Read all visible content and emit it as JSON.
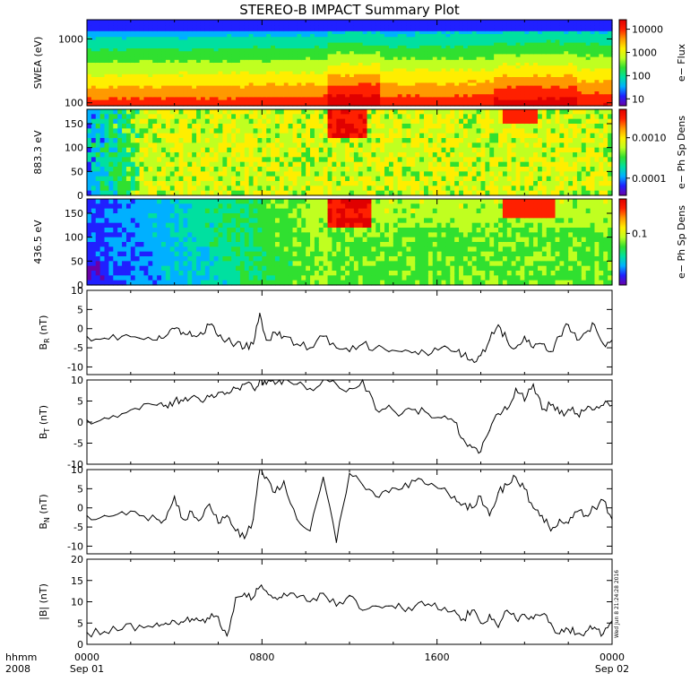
{
  "title": "STEREO-B IMPACT Summary Plot",
  "stamp": "Wed Jun  8 21:24:28 2016",
  "time_axis": {
    "row1_label": "hhmm",
    "row2_label": "2008",
    "ticks": [
      {
        "hour": 0,
        "label": "0000",
        "sub": "Sep 01"
      },
      {
        "hour": 8,
        "label": "0800",
        "sub": ""
      },
      {
        "hour": 16,
        "label": "1600",
        "sub": ""
      },
      {
        "hour": 24,
        "label": "0000",
        "sub": "Sep 02"
      }
    ],
    "range_hours": [
      0,
      24
    ]
  },
  "colors": {
    "spectrogram_scale": [
      "#6a00a8",
      "#2020ff",
      "#00b0ff",
      "#00e0a0",
      "#30e030",
      "#c0ff20",
      "#ffee00",
      "#ff9900",
      "#ff2000",
      "#e00000"
    ],
    "line": "#000000"
  },
  "spectro_panels": [
    {
      "id": "swea",
      "ylabel": "SWEA (eV)",
      "yscale": "log",
      "yrange": [
        90,
        2000
      ],
      "yticks": [
        {
          "v": 100,
          "label": "100"
        },
        {
          "v": 1000,
          "label": "1000"
        }
      ],
      "cbar_label": "e− Flux",
      "cbar_ticks": [
        {
          "frac": 0.08,
          "label": "10"
        },
        {
          "frac": 0.35,
          "label": "100"
        },
        {
          "frac": 0.62,
          "label": "1000"
        },
        {
          "frac": 0.89,
          "label": "10000"
        }
      ]
    },
    {
      "id": "pad883",
      "ylabel": "883.3 eV",
      "yscale": "linear",
      "yrange": [
        0,
        180
      ],
      "yticks": [
        {
          "v": 0,
          "label": "0"
        },
        {
          "v": 50,
          "label": "50"
        },
        {
          "v": 100,
          "label": "100"
        },
        {
          "v": 150,
          "label": "150"
        }
      ],
      "cbar_label": "e− Ph Sp Dens",
      "cbar_ticks": [
        {
          "frac": 0.2,
          "label": "0.0001"
        },
        {
          "frac": 0.67,
          "label": "0.0010"
        }
      ]
    },
    {
      "id": "pad436",
      "ylabel": "436.5 eV",
      "yscale": "linear",
      "yrange": [
        0,
        180
      ],
      "yticks": [
        {
          "v": 0,
          "label": "0"
        },
        {
          "v": 50,
          "label": "50"
        },
        {
          "v": 100,
          "label": "100"
        },
        {
          "v": 150,
          "label": "150"
        }
      ],
      "cbar_label": "e− Ph Sp Dens",
      "cbar_ticks": [
        {
          "frac": 0.6,
          "label": "0.1"
        }
      ]
    }
  ],
  "chart_data": [
    {
      "type": "line",
      "name": "BR",
      "ylabel_main": "B",
      "ylabel_sub": "R",
      "ylabel_unit": " (nT)",
      "ylim": [
        -12,
        10
      ],
      "yticks": [
        -10,
        -5,
        0,
        5,
        10
      ],
      "x": [
        0.0,
        0.8,
        1.6,
        2.4,
        3.2,
        3.6,
        4.0,
        4.4,
        4.8,
        5.2,
        5.6,
        6.0,
        6.4,
        6.8,
        7.2,
        7.6,
        7.9,
        8.2,
        8.6,
        9.0,
        9.6,
        10.2,
        10.8,
        11.4,
        12.0,
        12.6,
        13.2,
        13.8,
        14.4,
        15.0,
        15.6,
        16.2,
        16.8,
        17.2,
        17.6,
        18.0,
        18.4,
        18.8,
        19.2,
        19.6,
        20.0,
        20.4,
        20.8,
        21.2,
        21.6,
        22.0,
        22.4,
        22.8,
        23.2,
        23.6,
        24.0
      ],
      "y": [
        -2,
        -2.5,
        -2,
        -2.5,
        -3,
        -2,
        0,
        -1,
        -2,
        -1,
        1,
        -2,
        -3,
        -4,
        -5,
        -4,
        4,
        -3,
        -1,
        -2,
        -4,
        -5,
        -2,
        -5,
        -6,
        -4,
        -5,
        -6,
        -6,
        -6,
        -7,
        -5,
        -6,
        -7,
        -8,
        -7,
        -3,
        1,
        -3,
        -5,
        -2,
        -5,
        -4,
        -6,
        -2,
        1,
        -3,
        -1,
        1,
        -4,
        -3
      ]
    },
    {
      "type": "line",
      "name": "BT",
      "ylabel_main": "B",
      "ylabel_sub": "T",
      "ylabel_unit": " (nT)",
      "ylim": [
        -10,
        10
      ],
      "yticks": [
        -10,
        -5,
        0,
        5,
        10
      ],
      "x": [
        0.0,
        0.8,
        1.6,
        2.4,
        3.2,
        3.6,
        4.0,
        4.4,
        4.8,
        5.2,
        5.6,
        6.0,
        6.4,
        6.8,
        7.2,
        7.6,
        7.9,
        8.2,
        8.6,
        9.0,
        9.6,
        10.2,
        10.8,
        11.4,
        12.0,
        12.6,
        13.2,
        13.8,
        14.4,
        15.0,
        15.6,
        16.2,
        16.8,
        17.2,
        17.6,
        18.0,
        18.4,
        18.8,
        19.2,
        19.6,
        20.0,
        20.4,
        20.8,
        21.2,
        21.6,
        22.0,
        22.4,
        22.8,
        23.2,
        23.6,
        24.0
      ],
      "y": [
        0.5,
        1,
        2,
        3,
        4,
        4,
        5,
        5,
        6,
        5,
        6,
        7,
        7,
        8,
        9,
        8,
        10,
        9,
        9,
        10,
        9,
        8,
        10,
        9,
        8,
        10,
        3,
        4,
        2,
        3,
        2,
        1,
        0,
        -4,
        -6,
        -7,
        -2,
        2,
        3,
        8,
        5,
        9,
        3,
        4,
        2,
        3,
        2,
        3,
        3,
        4,
        4
      ]
    },
    {
      "type": "line",
      "name": "BN",
      "ylabel_main": "B",
      "ylabel_sub": "N",
      "ylabel_unit": " (nT)",
      "ylim": [
        -12,
        10
      ],
      "yticks": [
        -10,
        -5,
        0,
        5,
        10
      ],
      "x": [
        0.0,
        0.8,
        1.6,
        2.4,
        3.2,
        3.6,
        4.0,
        4.4,
        4.8,
        5.2,
        5.6,
        6.0,
        6.4,
        6.8,
        7.2,
        7.6,
        7.9,
        8.2,
        8.6,
        9.0,
        9.6,
        10.2,
        10.8,
        11.4,
        12.0,
        12.6,
        13.2,
        13.8,
        14.4,
        15.0,
        15.6,
        16.2,
        16.8,
        17.2,
        17.6,
        18.0,
        18.4,
        18.8,
        19.2,
        19.6,
        20.0,
        20.4,
        20.8,
        21.2,
        21.6,
        22.0,
        22.4,
        22.8,
        23.2,
        23.6,
        24.0
      ],
      "y": [
        -2,
        -2,
        -1,
        -2,
        -3,
        -3,
        3,
        -3,
        -1,
        -3,
        1,
        -4,
        -2,
        -6,
        -8,
        -3,
        10,
        8,
        4,
        7,
        -3,
        -6,
        8,
        -9,
        9,
        6,
        3,
        4,
        5,
        7,
        6,
        5,
        3,
        1,
        0,
        3,
        -2,
        4,
        6,
        8,
        5,
        0,
        -2,
        -6,
        -3,
        -4,
        -1,
        -2,
        0,
        2,
        -3
      ]
    },
    {
      "type": "line",
      "name": "|B|",
      "ylabel_main": "|B|",
      "ylabel_sub": "",
      "ylabel_unit": " (nT)",
      "ylim": [
        0,
        20
      ],
      "yticks": [
        0,
        5,
        10,
        15,
        20
      ],
      "x": [
        0.0,
        0.8,
        1.6,
        2.4,
        3.2,
        3.6,
        4.0,
        4.4,
        4.8,
        5.2,
        5.6,
        6.0,
        6.4,
        6.8,
        7.2,
        7.6,
        7.9,
        8.2,
        8.6,
        9.0,
        9.6,
        10.2,
        10.8,
        11.4,
        12.0,
        12.6,
        13.2,
        13.8,
        14.4,
        15.0,
        15.6,
        16.2,
        16.8,
        17.2,
        17.6,
        18.0,
        18.4,
        18.8,
        19.2,
        19.6,
        20.0,
        20.4,
        20.8,
        21.2,
        21.6,
        22.0,
        22.4,
        22.8,
        23.2,
        23.6,
        24.0
      ],
      "y": [
        2.8,
        3.0,
        3.5,
        4.5,
        5.0,
        5.0,
        5.5,
        5.2,
        6.0,
        5.5,
        6.0,
        6.5,
        2.0,
        11.0,
        12.0,
        11.0,
        13.5,
        12.5,
        11.0,
        12.0,
        11.0,
        10.0,
        12.0,
        9.0,
        11.5,
        8.0,
        9.0,
        9.0,
        8.5,
        9.0,
        9.5,
        8.0,
        8.0,
        6.0,
        8.0,
        5.0,
        7.0,
        4.0,
        8.0,
        6.0,
        7.0,
        6.0,
        7.0,
        5.0,
        2.5,
        3.5,
        2.5,
        3.0,
        4.0,
        2.5,
        5.5
      ]
    }
  ]
}
